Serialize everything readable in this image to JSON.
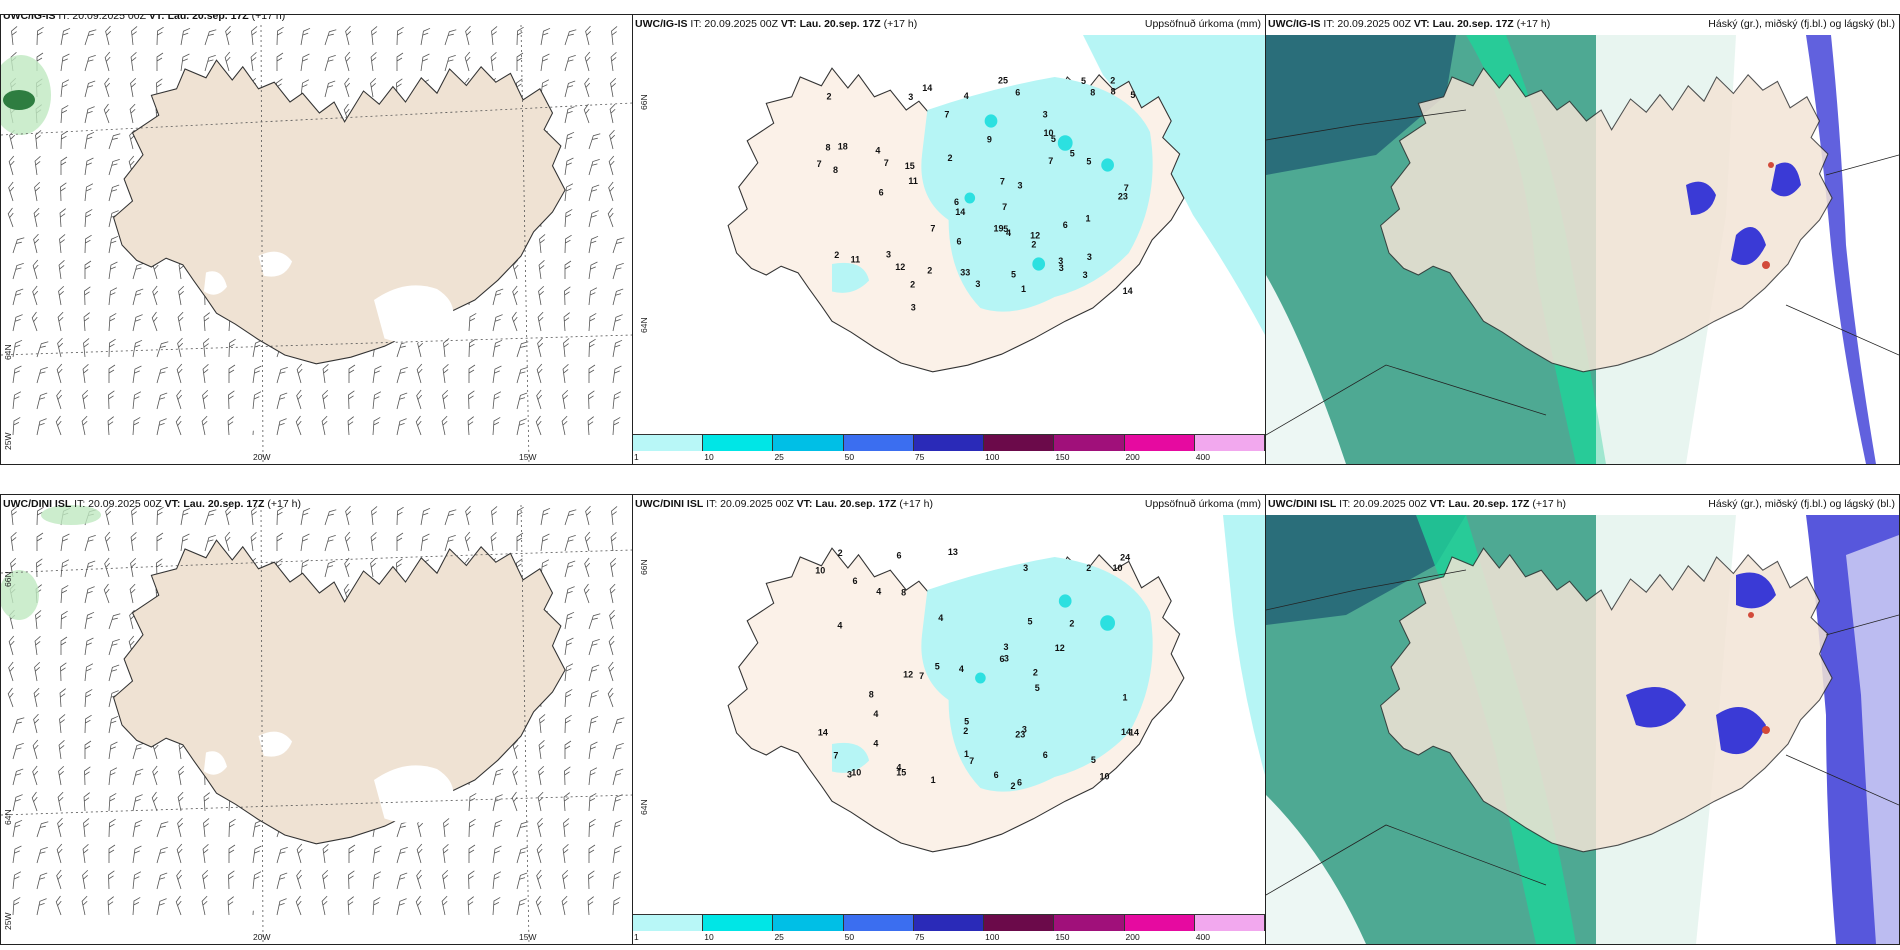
{
  "panels": [
    {
      "id": "p1",
      "model": "UWC/IG-IS",
      "it": "IT: 20.09.2025 00Z",
      "vt_label": "VT:",
      "vt": "Lau. 20.sep. 17Z",
      "lead": "(+17 h)",
      "right": "",
      "type": "wind",
      "clipped_header": true
    },
    {
      "id": "p2",
      "model": "UWC/IG-IS",
      "it": "IT: 20.09.2025 00Z",
      "vt_label": "VT:",
      "vt": "Lau. 20.sep. 17Z",
      "lead": "(+17 h)",
      "right": "Uppsöfnuð úrkoma (mm)",
      "type": "precip"
    },
    {
      "id": "p3",
      "model": "UWC/IG-IS",
      "it": "IT: 20.09.2025 00Z",
      "vt_label": "VT:",
      "vt": "Lau. 20.sep. 17Z",
      "lead": "(+17 h)",
      "right": "Háský (gr.), miðský (fj.bl.) og lágský (bl.)",
      "type": "cloud"
    },
    {
      "id": "p4",
      "model": "UWC/DINI ISL",
      "it": "IT: 20.09.2025 00Z",
      "vt_label": "VT:",
      "vt": "Lau. 20.sep. 17Z",
      "lead": "(+17 h)",
      "right": "",
      "type": "wind"
    },
    {
      "id": "p5",
      "model": "UWC/DINI ISL",
      "it": "IT: 20.09.2025 00Z",
      "vt_label": "VT:",
      "vt": "Lau. 20.sep. 17Z",
      "lead": "(+17 h)",
      "right": "Uppsöfnuð úrkoma (mm)",
      "type": "precip"
    },
    {
      "id": "p6",
      "model": "UWC/DINI ISL",
      "it": "IT: 20.09.2025 00Z",
      "vt_label": "VT:",
      "vt": "Lau. 20.sep. 17Z",
      "lead": "(+17 h)",
      "right": "Háský (gr.), miðský (fj.bl.) og lágský (bl.)",
      "type": "cloud"
    }
  ],
  "wind_axes": {
    "lon_labels": [
      "20W",
      "15W"
    ],
    "lat_labels_top": [
      "66N",
      "64N"
    ],
    "corner_label": "25W"
  },
  "precip_axes": {
    "lat_labels": [
      "66N",
      "64N"
    ]
  },
  "colorbar": {
    "ticks": [
      "1",
      "10",
      "25",
      "50",
      "75",
      "100",
      "150",
      "200",
      "400"
    ],
    "colors": [
      "#b8f7f7",
      "#00e6e6",
      "#00bfe6",
      "#3b6ef0",
      "#2a2ab8",
      "#6b0a4a",
      "#a0107a",
      "#e60aa0",
      "#f2a8ee"
    ]
  },
  "precip_values_top": [
    "1",
    "3",
    "3",
    "4",
    "5",
    "5",
    "23",
    "11",
    "14",
    "12",
    "11",
    "8",
    "6",
    "5",
    "7",
    "5",
    "8",
    "8",
    "6",
    "5",
    "3",
    "4",
    "2",
    "3",
    "3",
    "5",
    "6",
    "7",
    "3",
    "7",
    "2",
    "2",
    "3",
    "2",
    "14",
    "33",
    "25",
    "18",
    "7",
    "12",
    "4",
    "7",
    "5",
    "3",
    "6",
    "1",
    "19",
    "6",
    "7",
    "8",
    "7",
    "9",
    "15",
    "10",
    "2",
    "14",
    "3",
    "2",
    "3",
    "2",
    "7"
  ],
  "precip_values_bottom": [
    "1",
    "2",
    "4",
    "6",
    "6",
    "6",
    "12",
    "10",
    "13",
    "4",
    "2",
    "7",
    "5",
    "2",
    "3",
    "6",
    "4",
    "15",
    "7",
    "10",
    "23",
    "24",
    "3",
    "3",
    "2",
    "8",
    "14",
    "4",
    "2",
    "5",
    "4",
    "6",
    "5",
    "10",
    "4",
    "2",
    "14",
    "7",
    "5",
    "5",
    "3",
    "12",
    "14",
    "10",
    "8",
    "3",
    "1",
    "6",
    "4",
    "1"
  ],
  "colors": {
    "land": "#f3e7da",
    "land_precip": "#fbf1e8",
    "snow": "#ffffff",
    "precip_light": "#b6f5f5",
    "precip_mid": "#2ce0e0",
    "high_cloud": "#2f9a80",
    "mid_cloud": "#3a3ad6",
    "low_cloud": "#1e7fd8",
    "wind_land": "#efe2d3"
  }
}
